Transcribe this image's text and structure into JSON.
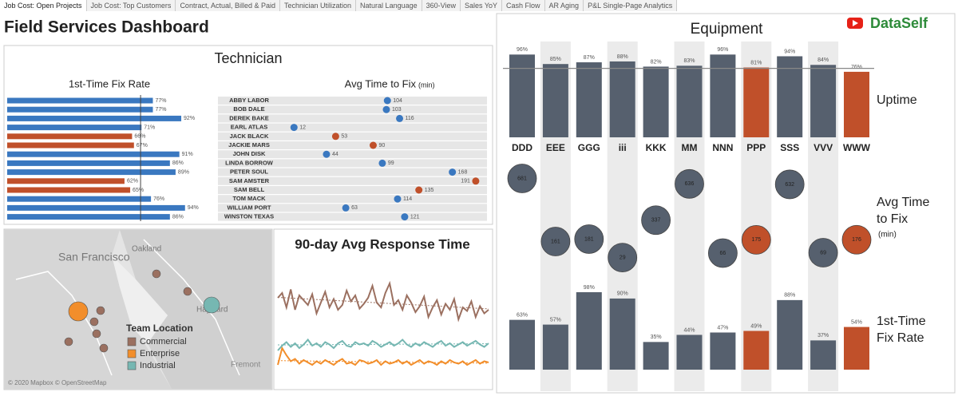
{
  "tabs": [
    "Job Cost: Open Projects",
    "Job Cost: Top Customers",
    "Contract, Actual, Billed & Paid",
    "Technician Utilization",
    "Natural Language",
    "360-View",
    "Sales YoY",
    "Cash Flow",
    "AR Aging",
    "P&L Single-Page Analytics"
  ],
  "header": {
    "title": "Field Services Dashboard",
    "brand": "DataSelf"
  },
  "technician_panel": {
    "title": "Technician"
  },
  "equipment_panel": {
    "title": "Equipment"
  },
  "map": {
    "labels": [
      "San Francisco",
      "Oakland",
      "Hayward",
      "Fremont"
    ],
    "attribution": "© 2020 Mapbox © OpenStreetMap",
    "legend_title": "Team Location"
  },
  "chart_data": [
    {
      "type": "hbar",
      "title": "1st-Time Fix Rate",
      "categories": [
        "ABBY LABOR",
        "BOB DALE",
        "DEREK BAKE",
        "EARL ATLAS",
        "JACK BLACK",
        "JACKIE MARS",
        "JOHN DISK",
        "LINDA BORROW",
        "PETER SOUL",
        "SAM AMSTER",
        "SAM BELL",
        "TOM MACK",
        "WILLIAM PORT",
        "WINSTON TEXAS"
      ],
      "values": [
        77,
        77,
        92,
        71,
        66,
        67,
        91,
        86,
        89,
        62,
        65,
        76,
        94,
        86
      ],
      "value_labels": [
        "77%",
        "77%",
        "92%",
        "71%",
        "66%",
        "67%",
        "91%",
        "86%",
        "89%",
        "62%",
        "65%",
        "76%",
        "94%",
        "86%"
      ],
      "colors": [
        "#3a78c0",
        "#3a78c0",
        "#3a78c0",
        "#3a78c0",
        "#c0502a",
        "#c0502a",
        "#3a78c0",
        "#3a78c0",
        "#3a78c0",
        "#c0502a",
        "#c0502a",
        "#3a78c0",
        "#3a78c0",
        "#3a78c0"
      ],
      "xlim": [
        0,
        100
      ],
      "reference_line": 70.5
    },
    {
      "type": "dot",
      "title": "Avg Time to Fix",
      "unit": "(min)",
      "values": [
        104,
        103,
        116,
        12,
        53,
        90,
        44,
        99,
        168,
        191,
        135,
        114,
        63,
        121
      ],
      "colors": [
        "#3a78c0",
        "#3a78c0",
        "#3a78c0",
        "#3a78c0",
        "#c0502a",
        "#c0502a",
        "#3a78c0",
        "#3a78c0",
        "#3a78c0",
        "#c0502a",
        "#c0502a",
        "#3a78c0",
        "#3a78c0",
        "#3a78c0"
      ],
      "xlim": [
        0,
        195
      ]
    },
    {
      "type": "line",
      "title": "90-day Avg Response Time",
      "ylim": [
        0,
        100
      ],
      "series": [
        {
          "name": "Commercial",
          "color": "#9b7060",
          "values": [
            68,
            72,
            60,
            75,
            58,
            70,
            66,
            62,
            71,
            55,
            64,
            73,
            60,
            67,
            58,
            62,
            74,
            65,
            70,
            59,
            63,
            68,
            78,
            64,
            60,
            72,
            80,
            62,
            66,
            58,
            70,
            64,
            56,
            61,
            69,
            52,
            60,
            66,
            54,
            63,
            58,
            67,
            50,
            60,
            57,
            65,
            52,
            61,
            55,
            58
          ]
        },
        {
          "name": "Enterprise",
          "color": "#f28e2b",
          "values": [
            12,
            26,
            20,
            15,
            17,
            13,
            16,
            14,
            12,
            15,
            13,
            16,
            14,
            12,
            15,
            17,
            13,
            14,
            12,
            16,
            15,
            13,
            14,
            16,
            12,
            15,
            13,
            14,
            16,
            13,
            15,
            12,
            14,
            16,
            13,
            15,
            14,
            12,
            15,
            13,
            16,
            14,
            13,
            15,
            12,
            14,
            16,
            13,
            15,
            14
          ]
        },
        {
          "name": "Industrial",
          "color": "#76b7b2",
          "values": [
            24,
            28,
            31,
            27,
            30,
            26,
            29,
            33,
            28,
            30,
            27,
            31,
            29,
            26,
            30,
            32,
            28,
            27,
            31,
            29,
            30,
            28,
            32,
            30,
            27,
            29,
            31,
            28,
            30,
            33,
            29,
            27,
            30,
            28,
            31,
            29,
            27,
            30,
            32,
            28,
            30,
            27,
            29,
            31,
            28,
            30,
            32,
            29,
            27,
            30
          ]
        }
      ]
    },
    {
      "type": "vbar",
      "title": "Uptime",
      "categories": [
        "DDD",
        "EEE",
        "GGG",
        "iii",
        "KKK",
        "MM",
        "NNN",
        "PPP",
        "SSS",
        "VVV",
        "WWW"
      ],
      "values": [
        96,
        85,
        87,
        88,
        82,
        83,
        96,
        81,
        94,
        84,
        76
      ],
      "value_labels": [
        "96%",
        "85%",
        "87%",
        "88%",
        "82%",
        "83%",
        "96%",
        "81%",
        "94%",
        "84%",
        "76%"
      ],
      "colors": [
        "#56606e",
        "#56606e",
        "#56606e",
        "#56606e",
        "#56606e",
        "#56606e",
        "#56606e",
        "#c0502a",
        "#56606e",
        "#56606e",
        "#c0502a"
      ],
      "ylim": [
        0,
        100
      ],
      "reference_line": 80
    },
    {
      "type": "vdot",
      "title": "Avg Time to Fix",
      "unit": "(min)",
      "values": [
        681,
        161,
        181,
        29,
        337,
        636,
        66,
        175,
        632,
        69,
        176
      ],
      "colors": [
        "#56606e",
        "#56606e",
        "#56606e",
        "#56606e",
        "#56606e",
        "#56606e",
        "#56606e",
        "#c0502a",
        "#56606e",
        "#56606e",
        "#c0502a"
      ],
      "ylim": [
        0,
        700
      ]
    },
    {
      "type": "vbar",
      "title": "1st-Time Fix Rate",
      "values": [
        63,
        57,
        98,
        90,
        35,
        44,
        47,
        49,
        88,
        37,
        54
      ],
      "value_labels": [
        "63%",
        "57%",
        "98%",
        "90%",
        "35%",
        "44%",
        "47%",
        "49%",
        "88%",
        "37%",
        "54%"
      ],
      "colors": [
        "#56606e",
        "#56606e",
        "#56606e",
        "#56606e",
        "#56606e",
        "#56606e",
        "#56606e",
        "#c0502a",
        "#56606e",
        "#56606e",
        "#c0502a"
      ],
      "ylim": [
        0,
        100
      ]
    }
  ]
}
